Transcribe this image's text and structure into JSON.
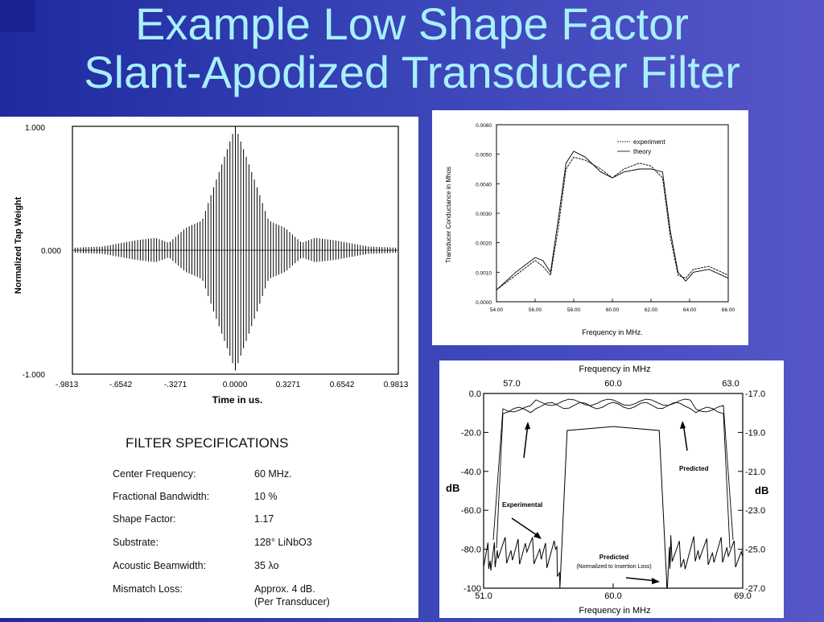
{
  "title": {
    "line1": "Example Low Shape Factor",
    "line2": "Slant-Apodized Transducer Filter"
  },
  "tap_plot": {
    "ylabel": "Normalized Tap Weight",
    "xlabel": "Time in us.",
    "y_ticks": [
      "1.000",
      "0.000",
      "-1.000"
    ],
    "x_ticks": [
      "-.9813",
      "-.6542",
      "-.3271",
      "0.0000",
      "0.3271",
      "0.6542",
      "0.9813"
    ]
  },
  "conductance_plot": {
    "ylabel": "Transducer Conductance in Mhos",
    "xlabel": "Frequency in MHz.",
    "y_ticks": [
      "0.0060",
      "0.0050",
      "0.0040",
      "0.0030",
      "0.0020",
      "0.0010",
      "0.0000"
    ],
    "x_ticks": [
      "54.00",
      "56.00",
      "58.00",
      "60.00",
      "62.00",
      "64.00",
      "66.00"
    ],
    "legend": [
      "experiment",
      "theory"
    ]
  },
  "response_plot": {
    "top_label": "Frequency in MHz",
    "bottom_label": "Frequency in MHz",
    "top_ticks": [
      "57.0",
      "60.0",
      "63.0"
    ],
    "bottom_ticks": [
      "51.0",
      "60.0",
      "69.0"
    ],
    "left_ticks": [
      "0.0",
      "-20.0",
      "-40.0",
      "-60.0",
      "-80.0",
      "-100"
    ],
    "right_ticks": [
      "-17.0",
      "-19.0",
      "-21.0",
      "-23.0",
      "-25.0",
      "-27.0"
    ],
    "left_unit": "dB",
    "right_unit": "dB",
    "annotations": {
      "predicted_top": "Predicted",
      "experimental": "Experimental",
      "predicted_bottom": "Predicted",
      "predicted_bottom_note": "(Normalized to Insertion Loss)"
    }
  },
  "specs": {
    "heading": "FILTER SPECIFICATIONS",
    "rows": [
      {
        "label": "Center Frequency:",
        "value": "60 MHz."
      },
      {
        "label": "Fractional Bandwidth:",
        "value": "10 %"
      },
      {
        "label": "Shape Factor:",
        "value": " 1.17"
      },
      {
        "label": "Substrate:",
        "value": "128° LiNbO3"
      },
      {
        "label": "Acoustic Beamwidth:",
        "value": " 35 λo"
      },
      {
        "label": "Mismatch Loss:",
        "value": "Approx. 4 dB."
      },
      {
        "label": "",
        "value": "(Per Transducer)"
      }
    ]
  },
  "chart_data": [
    {
      "type": "line",
      "title": "",
      "xlabel": "Time in us.",
      "ylabel": "Normalized Tap Weight",
      "xlim": [
        -0.9813,
        0.9813
      ],
      "ylim": [
        -1.0,
        1.0
      ],
      "series": [
        {
          "values_envelope": [
            [
              -0.98,
              0.02
            ],
            [
              -0.8,
              0.03
            ],
            [
              -0.6,
              0.08
            ],
            [
              -0.48,
              0.1
            ],
            [
              -0.4,
              0.06
            ],
            [
              -0.3,
              0.18
            ],
            [
              -0.2,
              0.24
            ],
            [
              -0.12,
              0.55
            ],
            [
              0.0,
              1.0
            ],
            [
              0.12,
              0.55
            ],
            [
              0.2,
              0.24
            ],
            [
              0.3,
              0.18
            ],
            [
              0.4,
              0.06
            ],
            [
              0.48,
              0.1
            ],
            [
              0.6,
              0.08
            ],
            [
              0.8,
              0.03
            ],
            [
              0.98,
              0.02
            ]
          ]
        }
      ]
    },
    {
      "type": "line",
      "title": "",
      "xlabel": "Frequency in MHz.",
      "ylabel": "Transducer Conductance in Mhos",
      "xlim": [
        54.0,
        66.0
      ],
      "ylim": [
        0.0,
        0.006
      ],
      "series": [
        {
          "name": "experiment",
          "x": [
            54.0,
            55.0,
            56.0,
            56.4,
            56.8,
            57.2,
            57.6,
            58.0,
            58.6,
            59.4,
            60.0,
            60.6,
            61.4,
            62.0,
            62.6,
            63.0,
            63.4,
            63.8,
            64.2,
            65.0,
            66.0
          ],
          "y": [
            0.0004,
            0.0009,
            0.0014,
            0.0012,
            0.0009,
            0.0025,
            0.0045,
            0.0049,
            0.0048,
            0.0045,
            0.0042,
            0.0045,
            0.0047,
            0.0046,
            0.0042,
            0.0022,
            0.0009,
            0.0008,
            0.0011,
            0.0012,
            0.0009
          ]
        },
        {
          "name": "theory",
          "x": [
            54.0,
            55.0,
            56.0,
            56.4,
            56.8,
            57.2,
            57.6,
            58.0,
            58.6,
            59.4,
            60.0,
            60.6,
            61.4,
            62.0,
            62.6,
            63.0,
            63.4,
            63.8,
            64.2,
            65.0,
            66.0
          ],
          "y": [
            0.0004,
            0.001,
            0.0015,
            0.0014,
            0.001,
            0.0028,
            0.0047,
            0.0051,
            0.0049,
            0.0044,
            0.0042,
            0.0044,
            0.0045,
            0.0045,
            0.0044,
            0.0024,
            0.001,
            0.0007,
            0.001,
            0.0011,
            0.0008
          ]
        }
      ]
    },
    {
      "type": "line",
      "title": "",
      "xlabel": "Frequency in MHz",
      "ylabel": "dB",
      "xlim": [
        51.0,
        69.0
      ],
      "ylim": [
        -100.0,
        0.0
      ],
      "series": [
        {
          "name": "Experimental",
          "x": [
            51.0,
            51.5,
            52.0,
            53.0,
            54.0,
            55.0,
            56.0,
            56.3,
            56.8,
            60.0,
            63.2,
            63.7,
            64.0,
            65.0,
            66.0,
            67.0,
            68.0,
            69.0
          ],
          "y": [
            -82,
            -85,
            -80,
            -82,
            -79,
            -84,
            -80,
            -100,
            -19,
            -17,
            -19,
            -100,
            -80,
            -83,
            -79,
            -82,
            -80,
            -84
          ]
        }
      ]
    }
  ]
}
